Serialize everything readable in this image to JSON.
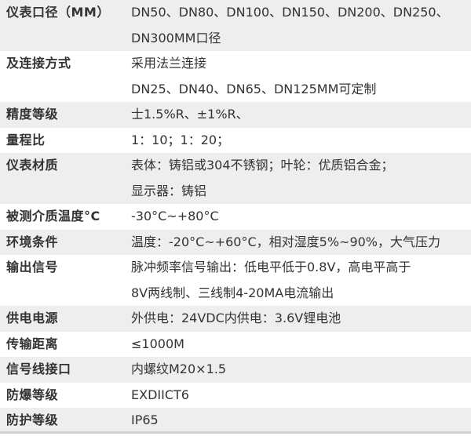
{
  "colors": {
    "stripe": "#eeeeee",
    "row_background": "#ffffff",
    "text": "#333333",
    "bottom_border": "#d2d2d2"
  },
  "table": {
    "rows": [
      {
        "label": "仪表口径（MM）",
        "value_lines": [
          "DN50、DN80、DN100、DN150、DN200、DN250、",
          "DN300MM口径"
        ]
      },
      {
        "label": "及连接方式",
        "value_lines": [
          "采用法兰连接",
          "DN25、DN40、DN65、DN125MM可定制"
        ]
      },
      {
        "label": "精度等级",
        "value_lines": [
          "士1.5%R、±1%R、"
        ]
      },
      {
        "label": "量程比",
        "value_lines": [
          "1：10；1：20；"
        ]
      },
      {
        "label": "仪表材质",
        "value_lines": [
          "表体：铸铝或304不锈钢；叶轮：优质铝合金；",
          "显示器：铸铝"
        ]
      },
      {
        "label": "被测介质温度°C",
        "value_lines": [
          "-30°C~+80°C"
        ]
      },
      {
        "label": "环境条件",
        "value_lines": [
          "温度：-20°C~+60°C，相对湿度5%~90%，大气压力"
        ]
      },
      {
        "label": "输出信号",
        "value_lines": [
          "脉冲频率信号输出：低电平低于0.8V，高电平高于",
          "8V两线制、三线制4-20MA电流输出"
        ]
      },
      {
        "label": "供电电源",
        "value_lines": [
          "外供电：24VDC内供电：3.6V锂电池"
        ]
      },
      {
        "label": "传输距离",
        "value_lines": [
          "≤1000M"
        ]
      },
      {
        "label": "信号线接口",
        "value_lines": [
          "内螺纹M20×1.5"
        ]
      },
      {
        "label": "防爆等级",
        "value_lines": [
          "EXDIICT6"
        ]
      },
      {
        "label": "防护等级",
        "value_lines": [
          "IP65"
        ]
      }
    ]
  }
}
